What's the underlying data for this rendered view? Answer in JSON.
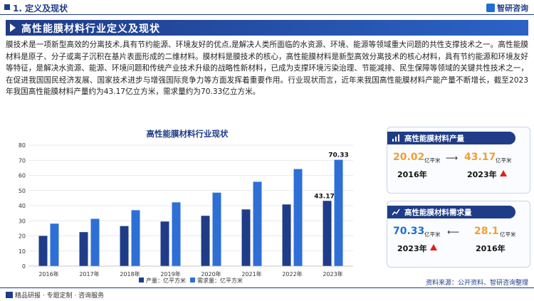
{
  "header": {
    "section": "1. 定义及现状",
    "logo": "智研咨询"
  },
  "banner": {
    "title": "高性能膜材料行业定义及现状"
  },
  "intro": "膜技术是一项新型高效的分离技术,具有节约能源、环境友好的优点,是解决人类所面临的水资源、环境、能源等领域重大问题的共性支撑技术之一。高性能膜材料是原子、分子或离子沉积在基片表面形成的二维材料。膜材料是膜技术的核心，高性能膜材料是新型高效分离技术的核心材料，具有节约能源和环境友好等特征，是解决水资源、能源、环境问题和传统产业技术升级的战略性新材料，已成为支撑环境污染治理、节能减排、民生保障等领域的关键共性技术之一，在促进我国国民经济发展、国家技术进步与增强国际竞争力等方面发挥着重要作用。行业现状而言，近年来我国高性能膜材料产能产量不断增长，截至2023年我国高性能膜材料产量约为43.17亿立方米，需求量约为70.33亿立方米。",
  "chart_data": {
    "type": "bar",
    "title": "高性能膜材料行业现状",
    "categories": [
      "2016年",
      "2017年",
      "2018年",
      "2019年",
      "2020年",
      "2021年",
      "2022年",
      "2023年"
    ],
    "series": [
      {
        "name": "产量：亿平方米",
        "values": [
          20.02,
          22.5,
          26.5,
          29.5,
          33.3,
          37.5,
          40.8,
          43.17
        ],
        "color": "#1f3c88"
      },
      {
        "name": "需求量：亿平方米",
        "values": [
          28.1,
          31.3,
          37.0,
          42.2,
          48.6,
          55.8,
          64.2,
          70.33
        ],
        "color": "#2e6fd6"
      }
    ],
    "data_labels": {
      "2023年_产量": "43.17",
      "2023年_需求量": "70.33"
    },
    "ylim": [
      0,
      80
    ],
    "yticks": [
      0,
      10,
      20,
      30,
      40,
      50,
      60,
      70,
      80
    ],
    "grid": true,
    "legend": "bottom"
  },
  "cards": {
    "production": {
      "title": "高性能膜材料产量",
      "from_value": "20.02",
      "from_unit": "亿平米",
      "from_year": "2016年",
      "to_value": "43.17",
      "to_unit": "亿平米",
      "to_year": "2023年",
      "from_color": "#f0a030",
      "to_color": "#f0a030"
    },
    "demand": {
      "title": "高性能膜材料需求量",
      "from_value": "70.33",
      "from_unit": "亿平米",
      "from_year": "2023年",
      "to_value": "28.1",
      "to_unit": "亿平米",
      "to_year": "2016年",
      "from_color": "#1f6ed4",
      "to_color": "#f0a030"
    }
  },
  "footer": {
    "left": "精品研报 · 专题定制 · 咨询服务",
    "source": "资料来源：公开资料、智研咨询整理"
  }
}
